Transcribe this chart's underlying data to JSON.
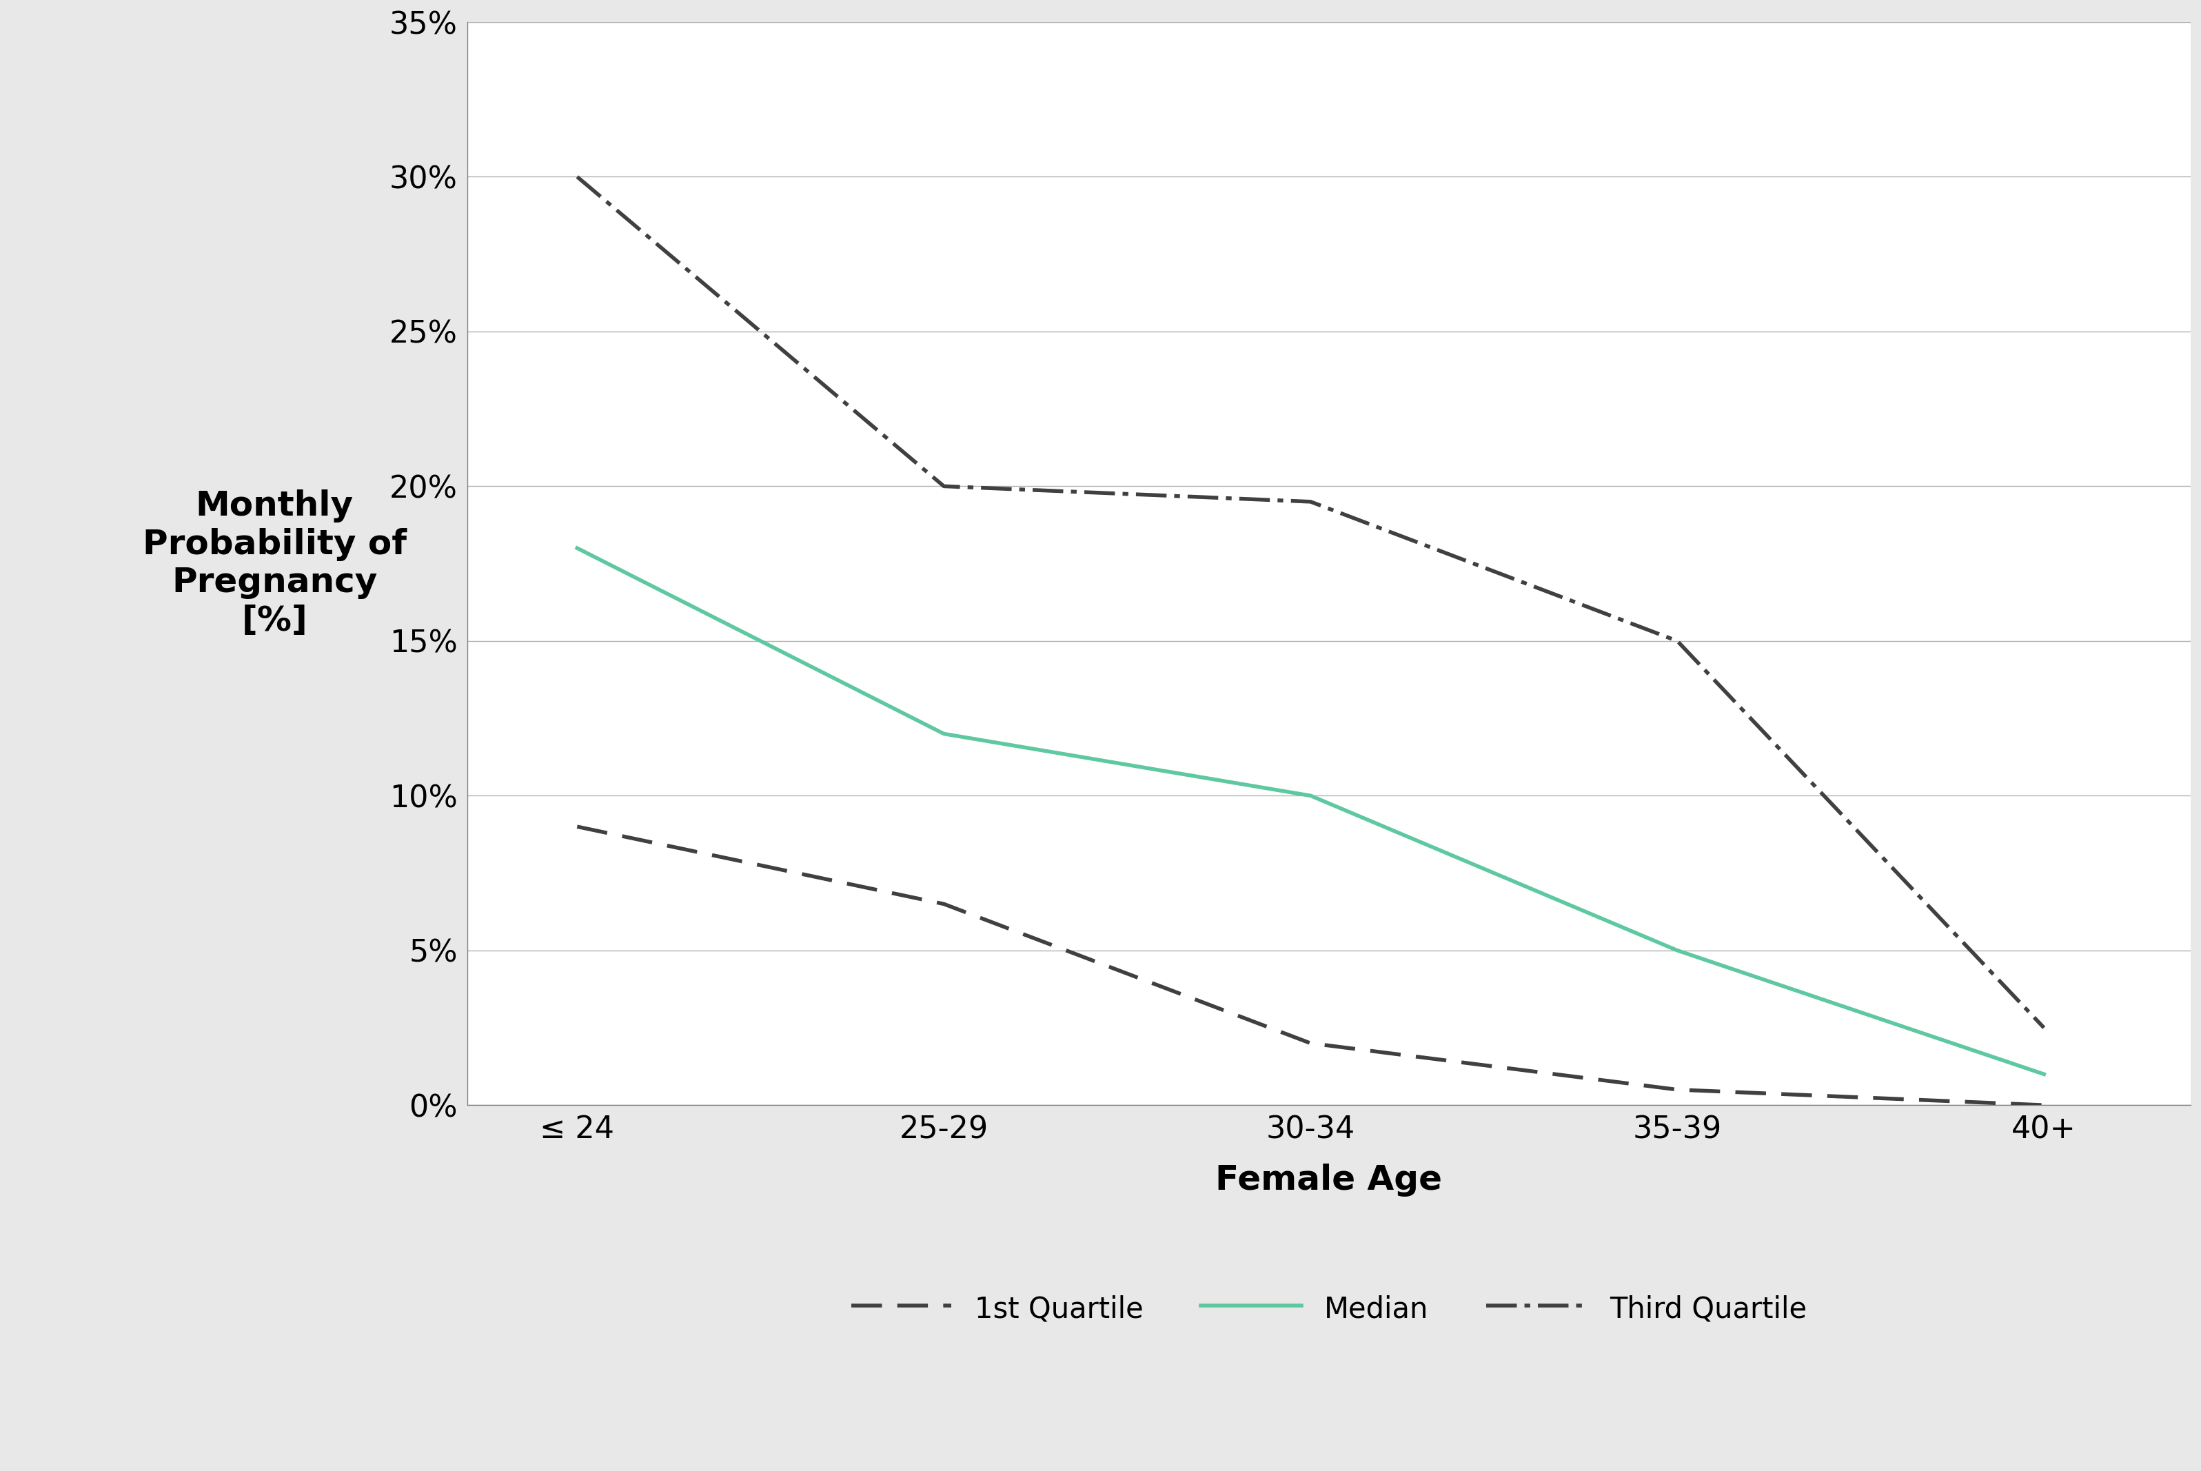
{
  "categories": [
    "≤ 24",
    "25-29",
    "30-34",
    "35-39",
    "40+"
  ],
  "x_positions": [
    0,
    1,
    2,
    3,
    4
  ],
  "first_quartile": [
    0.09,
    0.065,
    0.02,
    0.005,
    0.0
  ],
  "median": [
    0.18,
    0.12,
    0.1,
    0.05,
    0.01
  ],
  "third_quartile": [
    0.3,
    0.2,
    0.195,
    0.15,
    0.025
  ],
  "first_quartile_color": "#404040",
  "median_color": "#5ec8a0",
  "third_quartile_color": "#404040",
  "ylabel": "Monthly\nProbability of\nPregnancy\n[%]",
  "xlabel": "Female Age",
  "ylim": [
    0,
    0.35
  ],
  "yticks": [
    0.0,
    0.05,
    0.1,
    0.15,
    0.2,
    0.25,
    0.3,
    0.35
  ],
  "ytick_labels": [
    "0%",
    "5%",
    "10%",
    "15%",
    "20%",
    "25%",
    "30%",
    "35%"
  ],
  "legend_labels": [
    "1st Quartile",
    "Median",
    "Third Quartile"
  ],
  "outer_background": "#e8e8e8",
  "plot_background_color": "#ffffff",
  "axis_label_fontsize": 36,
  "tick_fontsize": 32,
  "legend_fontsize": 30,
  "ylabel_fontsize": 36,
  "line_width": 4.0
}
